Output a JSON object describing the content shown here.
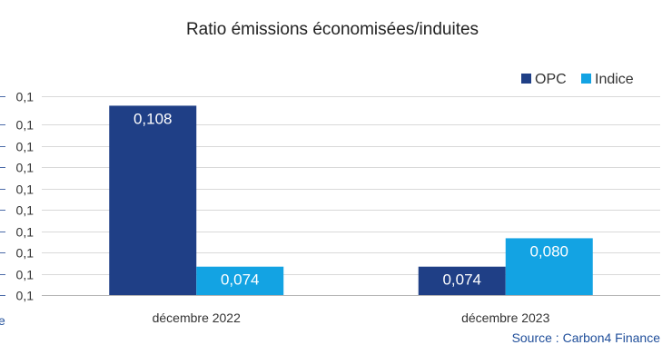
{
  "chart_data": {
    "type": "bar",
    "title": "Ratio émissions économisées/induites",
    "categories": [
      "décembre 2022",
      "décembre 2023"
    ],
    "series": [
      {
        "name": "OPC",
        "color": "#1f3f86",
        "values": [
          0.108,
          0.074
        ],
        "labels": [
          "0,108",
          "0,074"
        ]
      },
      {
        "name": "Indice",
        "color": "#13a3e3",
        "values": [
          0.074,
          0.08
        ],
        "labels": [
          "0,074",
          "0,080"
        ]
      }
    ],
    "ylim": [
      0.068,
      0.11
    ],
    "yticks": [
      0.068,
      0.0725,
      0.077,
      0.0815,
      0.086,
      0.0905,
      0.095,
      0.0995,
      0.104,
      0.11
    ],
    "ytick_labels": [
      "0,1",
      "0,1",
      "0,1",
      "0,1",
      "0,1",
      "0,1",
      "0,1",
      "0,1",
      "0,1",
      "0,1"
    ],
    "xlabel": "",
    "ylabel": "",
    "grid": true,
    "legend_position": "top-right",
    "source": "Source : Carbon4 Finance",
    "left_edge_fragment": "e"
  }
}
